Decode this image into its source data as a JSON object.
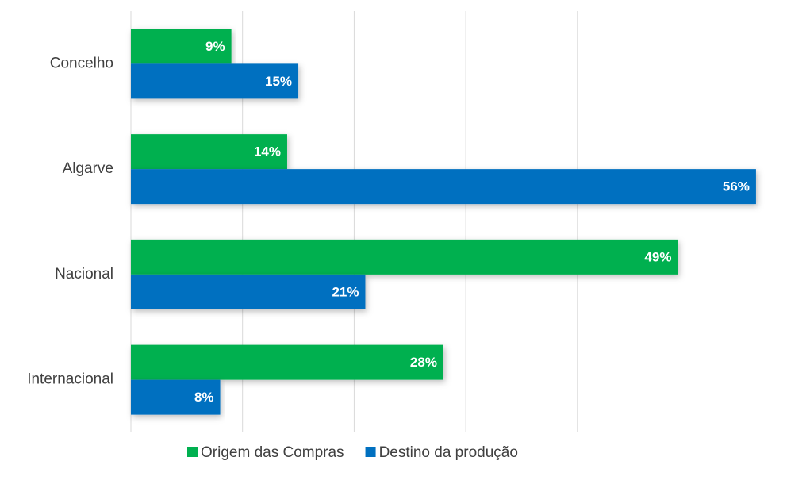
{
  "chart_data": {
    "type": "barh",
    "categories": [
      "Concelho",
      "Algarve",
      "Nacional",
      "Internacional"
    ],
    "series": [
      {
        "name": "Origem das Compras",
        "color": "#00b050",
        "values": [
          9,
          14,
          49,
          28
        ],
        "value_labels": [
          "9%",
          "14%",
          "49%",
          "28%"
        ]
      },
      {
        "name": "Destino da produção",
        "color": "#0070c0",
        "values": [
          15,
          56,
          21,
          8
        ],
        "value_labels": [
          "15%",
          "56%",
          "21%",
          "8%"
        ]
      }
    ],
    "xlim": [
      0,
      57
    ],
    "xticks": [
      0,
      10,
      20,
      30,
      40,
      50
    ],
    "grid": true
  }
}
